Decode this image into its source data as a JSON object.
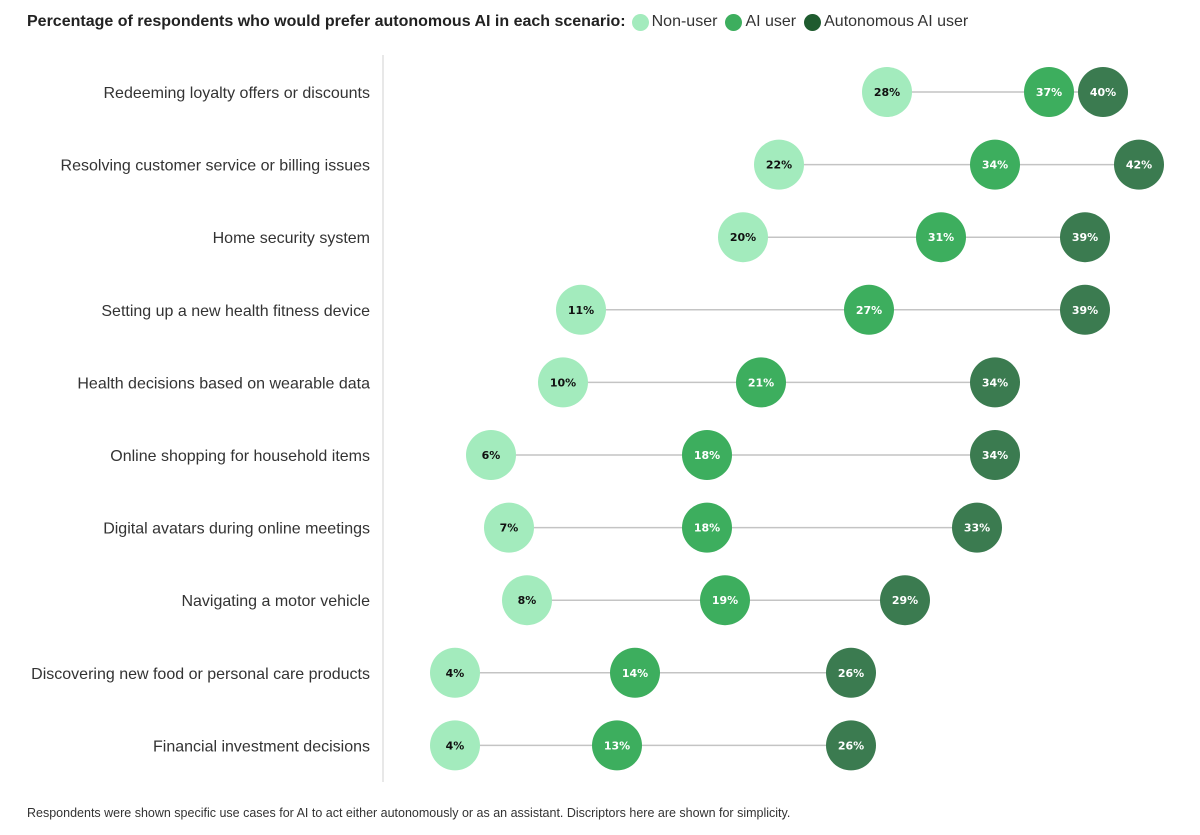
{
  "colors": {
    "nonuser": "#a3ebbd",
    "aiuser": "#3dae5e",
    "autonomous": "#3b7b50",
    "legend_autonomous": "#1f5b2f",
    "connector": "#c4c4c4",
    "axis": "#e0e0e0"
  },
  "footnote": "Respondents were shown specific use cases for AI to act either autonomously or as an assistant. Discriptors here are shown for simplicity.",
  "chart_data": {
    "type": "dumbbell",
    "title": "Percentage of respondents who would prefer autonomous AI in each scenario:",
    "legend": [
      "Non-user",
      "AI user",
      "Autonomous AI user"
    ],
    "legend_placement": "top-inline",
    "xlim": [
      0,
      45
    ],
    "categories": [
      "Redeeming loyalty offers or discounts",
      "Resolving customer service or billing issues",
      "Home security system",
      "Setting up a new health fitness device",
      "Health decisions based on wearable data",
      "Online shopping for household items",
      "Digital avatars during online meetings",
      "Navigating a motor vehicle",
      "Discovering new food or personal care products",
      "Financial investment decisions"
    ],
    "series": [
      {
        "name": "Non-user",
        "values": [
          28,
          22,
          20,
          11,
          10,
          6,
          7,
          8,
          4,
          4
        ],
        "labels": [
          "28%",
          "22%",
          "20%",
          "11%",
          "10%",
          "6%",
          "7%",
          "8%",
          "4%",
          "4%"
        ]
      },
      {
        "name": "AI user",
        "values": [
          37,
          34,
          31,
          27,
          21,
          18,
          18,
          19,
          14,
          13
        ],
        "labels": [
          "37%",
          "34%",
          "31%",
          "27%",
          "21%",
          "18%",
          "18%",
          "19%",
          "14%",
          "13%"
        ]
      },
      {
        "name": "Autonomous AI user",
        "values": [
          40,
          42,
          39,
          39,
          34,
          34,
          33,
          29,
          26,
          26
        ],
        "labels": [
          "40%",
          "42%",
          "39%",
          "39%",
          "34%",
          "34%",
          "33%",
          "29%",
          "26%",
          "26%"
        ]
      }
    ]
  }
}
